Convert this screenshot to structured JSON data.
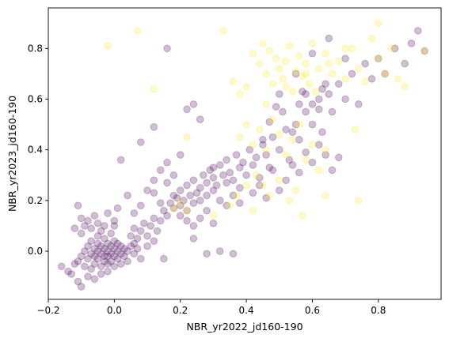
{
  "chart_data": {
    "type": "scatter",
    "title": "",
    "xlabel": "NBR_yr2022_jd160-190",
    "ylabel": "NBR_yr2023_jd160-190",
    "xlim": [
      -0.2,
      0.99
    ],
    "ylim": [
      -0.19,
      0.96
    ],
    "xticks": [
      -0.2,
      0.0,
      0.2,
      0.4,
      0.6,
      0.8
    ],
    "xtick_labels": [
      "−0.2",
      "0.0",
      "0.2",
      "0.4",
      "0.6",
      "0.8"
    ],
    "yticks": [
      0.0,
      0.2,
      0.4,
      0.6,
      0.8
    ],
    "ytick_labels": [
      "0.0",
      "0.2",
      "0.4",
      "0.6",
      "0.8"
    ],
    "grid": false,
    "legend": "none",
    "marker_alpha": 0.25,
    "colors": {
      "purple": "#440154",
      "yellow": "#fde725",
      "axes": "#000000",
      "background": "#ffffff"
    },
    "series": [
      {
        "color": "purple",
        "points": [
          [
            -0.16,
            -0.06
          ],
          [
            -0.14,
            -0.08
          ],
          [
            -0.13,
            -0.09
          ],
          [
            -0.12,
            -0.05
          ],
          [
            -0.11,
            -0.04
          ],
          [
            -0.11,
            -0.12
          ],
          [
            -0.1,
            -0.14
          ],
          [
            -0.1,
            -0.02
          ],
          [
            -0.09,
            -0.06
          ],
          [
            -0.09,
            0.0
          ],
          [
            -0.08,
            -0.1
          ],
          [
            -0.08,
            -0.03
          ],
          [
            -0.08,
            0.02
          ],
          [
            -0.07,
            -0.07
          ],
          [
            -0.07,
            -0.01
          ],
          [
            -0.07,
            0.04
          ],
          [
            -0.06,
            -0.05
          ],
          [
            -0.06,
            -0.02
          ],
          [
            -0.06,
            0.01
          ],
          [
            -0.06,
            -0.11
          ],
          [
            -0.05,
            -0.03
          ],
          [
            -0.05,
            0.0
          ],
          [
            -0.05,
            0.03
          ],
          [
            -0.05,
            0.06
          ],
          [
            -0.04,
            -0.06
          ],
          [
            -0.04,
            -0.01
          ],
          [
            -0.04,
            0.02
          ],
          [
            -0.04,
            -0.09
          ],
          [
            -0.03,
            -0.04
          ],
          [
            -0.03,
            -0.02
          ],
          [
            -0.03,
            0.01
          ],
          [
            -0.03,
            0.05
          ],
          [
            -0.02,
            -0.05
          ],
          [
            -0.02,
            -0.02
          ],
          [
            -0.02,
            0.0
          ],
          [
            -0.02,
            0.03
          ],
          [
            -0.02,
            -0.08
          ],
          [
            -0.01,
            -0.04
          ],
          [
            -0.01,
            -0.01
          ],
          [
            -0.01,
            0.02
          ],
          [
            0.0,
            -0.06
          ],
          [
            0.0,
            -0.02
          ],
          [
            0.0,
            0.01
          ],
          [
            0.0,
            0.04
          ],
          [
            0.01,
            -0.03
          ],
          [
            0.01,
            0.0
          ],
          [
            0.01,
            0.03
          ],
          [
            0.02,
            -0.05
          ],
          [
            0.02,
            -0.01
          ],
          [
            0.02,
            0.02
          ],
          [
            0.03,
            -0.02
          ],
          [
            0.03,
            0.01
          ],
          [
            0.04,
            -0.04
          ],
          [
            0.04,
            0.0
          ],
          [
            0.05,
            0.02
          ],
          [
            0.06,
            -0.01
          ],
          [
            0.06,
            0.03
          ],
          [
            0.07,
            0.01
          ],
          [
            0.08,
            -0.03
          ],
          [
            -0.1,
            0.07
          ],
          [
            -0.09,
            0.1
          ],
          [
            -0.08,
            0.12
          ],
          [
            -0.07,
            0.09
          ],
          [
            -0.06,
            0.14
          ],
          [
            -0.05,
            0.11
          ],
          [
            -0.04,
            0.08
          ],
          [
            -0.03,
            0.1
          ],
          [
            -0.02,
            0.15
          ],
          [
            -0.01,
            0.07
          ],
          [
            0.0,
            0.12
          ],
          [
            -0.11,
            0.18
          ],
          [
            -0.1,
            0.13
          ],
          [
            -0.12,
            0.09
          ],
          [
            0.01,
            0.17
          ],
          [
            0.0,
            0.1
          ],
          [
            0.05,
            0.06
          ],
          [
            0.06,
            0.09
          ],
          [
            0.07,
            0.05
          ],
          [
            0.08,
            0.08
          ],
          [
            0.09,
            0.11
          ],
          [
            0.1,
            0.06
          ],
          [
            0.11,
            0.1
          ],
          [
            0.12,
            0.13
          ],
          [
            0.13,
            0.08
          ],
          [
            0.1,
            0.02
          ],
          [
            0.12,
            0.04
          ],
          [
            0.14,
            0.12
          ],
          [
            0.15,
            0.16
          ],
          [
            0.16,
            0.14
          ],
          [
            0.17,
            0.19
          ],
          [
            0.18,
            0.17
          ],
          [
            0.19,
            0.21
          ],
          [
            0.2,
            0.18
          ],
          [
            0.2,
            0.24
          ],
          [
            0.21,
            0.2
          ],
          [
            0.22,
            0.16
          ],
          [
            0.22,
            0.26
          ],
          [
            0.23,
            0.22
          ],
          [
            0.24,
            0.19
          ],
          [
            0.24,
            0.28
          ],
          [
            0.25,
            0.23
          ],
          [
            0.26,
            0.25
          ],
          [
            0.26,
            0.2
          ],
          [
            0.27,
            0.3
          ],
          [
            0.28,
            0.27
          ],
          [
            0.28,
            0.22
          ],
          [
            0.29,
            0.32
          ],
          [
            0.3,
            0.29
          ],
          [
            0.3,
            0.24
          ],
          [
            0.31,
            0.26
          ],
          [
            0.32,
            0.34
          ],
          [
            0.33,
            0.3
          ],
          [
            0.34,
            0.27
          ],
          [
            0.34,
            0.36
          ],
          [
            0.35,
            0.31
          ],
          [
            0.36,
            0.28
          ],
          [
            0.37,
            0.38
          ],
          [
            0.38,
            0.33
          ],
          [
            0.38,
            0.25
          ],
          [
            0.39,
            0.35
          ],
          [
            0.4,
            0.3
          ],
          [
            0.41,
            0.4
          ],
          [
            0.42,
            0.34
          ],
          [
            0.43,
            0.37
          ],
          [
            0.44,
            0.29
          ],
          [
            0.45,
            0.42
          ],
          [
            0.46,
            0.38
          ],
          [
            0.47,
            0.33
          ],
          [
            0.48,
            0.45
          ],
          [
            0.5,
            0.4
          ],
          [
            0.52,
            0.48
          ],
          [
            0.53,
            0.36
          ],
          [
            0.55,
            0.5
          ],
          [
            0.56,
            0.44
          ],
          [
            0.58,
            0.55
          ],
          [
            0.6,
            0.5
          ],
          [
            0.62,
            0.6
          ],
          [
            0.63,
            0.47
          ],
          [
            0.65,
            0.62
          ],
          [
            0.66,
            0.55
          ],
          [
            0.68,
            0.66
          ],
          [
            0.7,
            0.6
          ],
          [
            0.72,
            0.7
          ],
          [
            0.74,
            0.58
          ],
          [
            0.76,
            0.74
          ],
          [
            0.78,
            0.68
          ],
          [
            0.8,
            0.76
          ],
          [
            0.82,
            0.7
          ],
          [
            0.85,
            0.8
          ],
          [
            0.88,
            0.74
          ],
          [
            0.9,
            0.82
          ],
          [
            0.92,
            0.87
          ],
          [
            0.94,
            0.79
          ],
          [
            0.6,
            0.78
          ],
          [
            0.55,
            0.7
          ],
          [
            0.5,
            0.62
          ],
          [
            0.65,
            0.84
          ],
          [
            0.7,
            0.76
          ],
          [
            0.58,
            0.62
          ],
          [
            0.62,
            0.56
          ],
          [
            0.12,
            0.23
          ],
          [
            0.14,
            0.19
          ],
          [
            0.16,
            0.27
          ],
          [
            0.18,
            0.22
          ],
          [
            0.2,
            0.14
          ],
          [
            0.22,
            0.12
          ],
          [
            0.24,
            0.1
          ],
          [
            0.26,
            0.13
          ],
          [
            0.28,
            0.16
          ],
          [
            0.3,
            0.11
          ],
          [
            0.18,
            0.3
          ],
          [
            0.16,
            0.35
          ],
          [
            0.14,
            0.32
          ],
          [
            0.12,
            0.28
          ],
          [
            0.1,
            0.24
          ],
          [
            0.08,
            0.18
          ],
          [
            0.06,
            0.15
          ],
          [
            0.04,
            0.22
          ],
          [
            0.02,
            0.36
          ],
          [
            0.08,
            0.43
          ],
          [
            0.12,
            0.49
          ],
          [
            0.16,
            0.8
          ],
          [
            0.22,
            0.56
          ],
          [
            0.26,
            0.52
          ],
          [
            0.24,
            0.58
          ],
          [
            0.2,
            0.38
          ],
          [
            0.24,
            0.05
          ],
          [
            0.32,
            0.0
          ],
          [
            0.36,
            -0.01
          ],
          [
            0.28,
            -0.01
          ],
          [
            0.15,
            -0.03
          ],
          [
            0.3,
            0.33
          ],
          [
            0.32,
            0.2
          ],
          [
            0.34,
            0.18
          ],
          [
            0.36,
            0.22
          ],
          [
            0.38,
            0.19
          ],
          [
            0.42,
            0.23
          ],
          [
            0.44,
            0.26
          ],
          [
            0.46,
            0.21
          ],
          [
            0.48,
            0.32
          ],
          [
            0.5,
            0.24
          ],
          [
            0.52,
            0.28
          ],
          [
            0.54,
            0.34
          ],
          [
            0.56,
            0.31
          ],
          [
            0.58,
            0.39
          ],
          [
            0.6,
            0.35
          ],
          [
            0.62,
            0.42
          ],
          [
            0.64,
            0.38
          ],
          [
            0.66,
            0.32
          ],
          [
            0.68,
            0.37
          ],
          [
            0.56,
            0.58
          ],
          [
            0.6,
            0.58
          ],
          [
            0.63,
            0.64
          ],
          [
            0.64,
            0.66
          ],
          [
            0.45,
            0.44
          ],
          [
            0.47,
            0.51
          ],
          [
            0.49,
            0.57
          ],
          [
            0.51,
            0.55
          ],
          [
            0.54,
            0.47
          ],
          [
            0.57,
            0.63
          ]
        ]
      },
      {
        "color": "yellow",
        "points": [
          [
            -0.02,
            0.81
          ],
          [
            0.07,
            0.87
          ],
          [
            0.12,
            0.64
          ],
          [
            0.33,
            0.87
          ],
          [
            0.36,
            0.67
          ],
          [
            0.38,
            0.62
          ],
          [
            0.4,
            0.65
          ],
          [
            0.42,
            0.78
          ],
          [
            0.44,
            0.74
          ],
          [
            0.45,
            0.82
          ],
          [
            0.46,
            0.7
          ],
          [
            0.47,
            0.79
          ],
          [
            0.48,
            0.66
          ],
          [
            0.49,
            0.76
          ],
          [
            0.5,
            0.72
          ],
          [
            0.51,
            0.68
          ],
          [
            0.52,
            0.75
          ],
          [
            0.53,
            0.81
          ],
          [
            0.54,
            0.63
          ],
          [
            0.55,
            0.71
          ],
          [
            0.56,
            0.77
          ],
          [
            0.57,
            0.69
          ],
          [
            0.58,
            0.74
          ],
          [
            0.59,
            0.66
          ],
          [
            0.6,
            0.82
          ],
          [
            0.62,
            0.72
          ],
          [
            0.64,
            0.78
          ],
          [
            0.66,
            0.7
          ],
          [
            0.68,
            0.75
          ],
          [
            0.7,
            0.68
          ],
          [
            0.72,
            0.8
          ],
          [
            0.74,
            0.72
          ],
          [
            0.76,
            0.67
          ],
          [
            0.78,
            0.84
          ],
          [
            0.8,
            0.76
          ],
          [
            0.82,
            0.7
          ],
          [
            0.84,
            0.8
          ],
          [
            0.86,
            0.68
          ],
          [
            0.88,
            0.65
          ],
          [
            0.94,
            0.79
          ],
          [
            0.38,
            0.45
          ],
          [
            0.4,
            0.5
          ],
          [
            0.42,
            0.42
          ],
          [
            0.44,
            0.48
          ],
          [
            0.46,
            0.4
          ],
          [
            0.48,
            0.52
          ],
          [
            0.5,
            0.46
          ],
          [
            0.52,
            0.38
          ],
          [
            0.54,
            0.44
          ],
          [
            0.56,
            0.5
          ],
          [
            0.58,
            0.36
          ],
          [
            0.6,
            0.42
          ],
          [
            0.62,
            0.32
          ],
          [
            0.64,
            0.4
          ],
          [
            0.43,
            0.3
          ],
          [
            0.45,
            0.26
          ],
          [
            0.47,
            0.22
          ],
          [
            0.5,
            0.28
          ],
          [
            0.53,
            0.2
          ],
          [
            0.55,
            0.24
          ],
          [
            0.57,
            0.14
          ],
          [
            0.42,
            0.16
          ],
          [
            0.4,
            0.26
          ],
          [
            0.37,
            0.22
          ],
          [
            0.35,
            0.18
          ],
          [
            0.3,
            0.14
          ],
          [
            0.64,
            0.22
          ],
          [
            0.74,
            0.2
          ],
          [
            0.73,
            0.48
          ],
          [
            0.2,
            0.19
          ],
          [
            0.22,
            0.16
          ],
          [
            0.18,
            0.17
          ],
          [
            0.22,
            0.45
          ],
          [
            0.7,
            0.8
          ],
          [
            0.8,
            0.9
          ],
          [
            0.65,
            0.74
          ],
          [
            0.46,
            0.58
          ],
          [
            0.52,
            0.65
          ],
          [
            0.58,
            0.7
          ],
          [
            0.61,
            0.63
          ]
        ]
      }
    ]
  }
}
